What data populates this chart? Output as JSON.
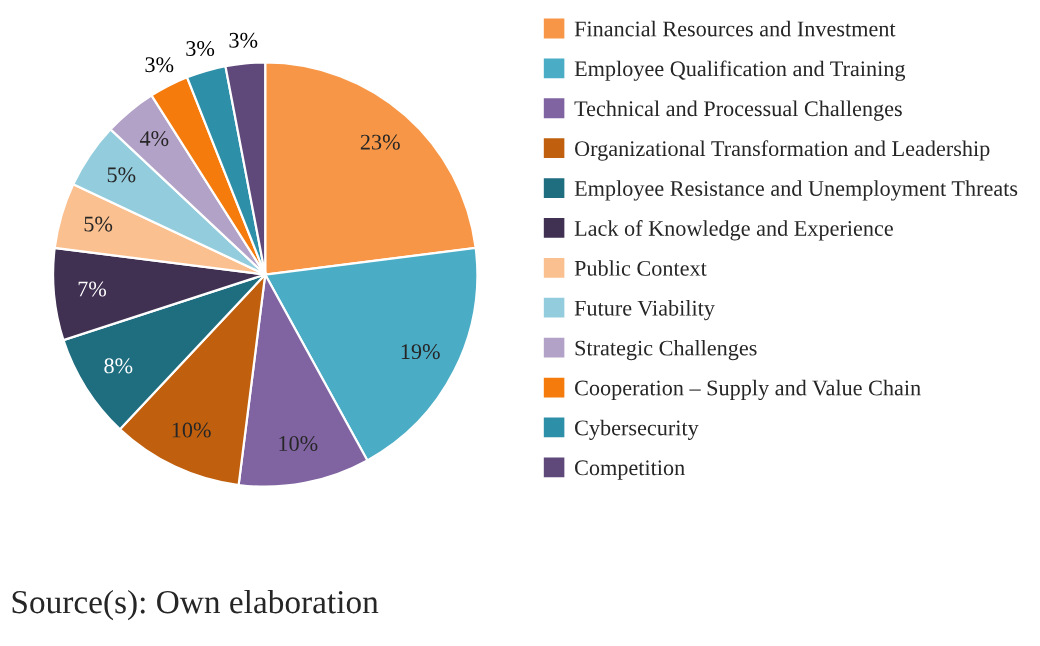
{
  "chart_data": {
    "type": "pie",
    "categories": [
      "Financial Resources and Investment",
      "Employee Qualification and Training",
      "Technical and Processual Challenges",
      "Organizational Transformation and Leadership",
      "Employee Resistance and Unemployment Threats",
      "Lack of Knowledge and Experience",
      "Public Context",
      "Future Viability",
      "Strategic Challenges",
      "Cooperation – Supply and Value Chain",
      "Cybersecurity",
      "Competition"
    ],
    "values": [
      23,
      19,
      10,
      10,
      8,
      7,
      5,
      5,
      4,
      3,
      3,
      3
    ],
    "colors": [
      "#f79646",
      "#4bacc6",
      "#8064a2",
      "#c0600f",
      "#1f6e80",
      "#403152",
      "#fac090",
      "#93cddd",
      "#b3a2c7",
      "#f47b0c",
      "#2e8fa8",
      "#5f497a"
    ],
    "value_labels": [
      "23%",
      "19%",
      "10%",
      "10%",
      "8%",
      "7%",
      "5%",
      "5%",
      "4%",
      "3%",
      "3%",
      "3%"
    ],
    "legend": "right",
    "annotations": [
      "Source(s): Own elaboration"
    ]
  }
}
